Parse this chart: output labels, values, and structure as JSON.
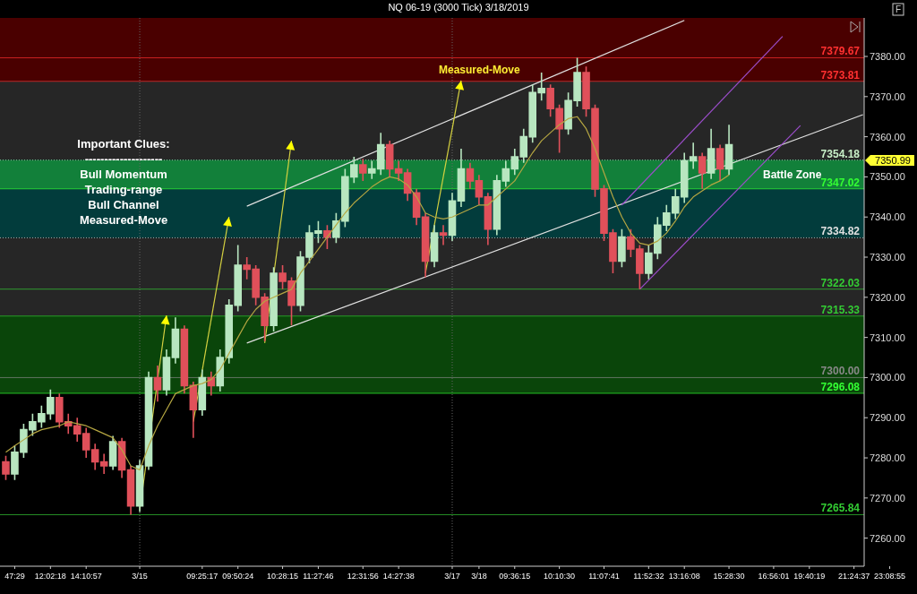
{
  "chart_data": {
    "type": "candlestick",
    "title": "NQ 06-19 (3000 Tick)  3/18/2019",
    "categories": [
      null,
      "47:29",
      null,
      null,
      null,
      "12:02:18",
      null,
      null,
      null,
      "14:10:57",
      null,
      null,
      null,
      null,
      null,
      "3/15",
      null,
      null,
      null,
      null,
      null,
      null,
      "09:25:17",
      null,
      null,
      null,
      "09:50:24",
      null,
      null,
      null,
      null,
      "10:28:15",
      null,
      null,
      null,
      "11:27:46",
      null,
      null,
      null,
      null,
      "12:31:56",
      null,
      null,
      null,
      "14:27:38",
      null,
      null,
      null,
      null,
      null,
      "3/17",
      null,
      null,
      "3/18",
      null,
      null,
      null,
      "09:36:15",
      null,
      null,
      null,
      null,
      "10:10:30",
      null,
      null,
      null,
      null,
      "11:07:41",
      null,
      null,
      null,
      null,
      "11:52:32",
      null,
      null,
      null,
      "13:16:08",
      null,
      null,
      null,
      null,
      "15:28:30",
      null,
      null,
      null,
      null,
      "16:56:01",
      null,
      null,
      null,
      "19:40:19",
      null,
      null,
      null,
      null,
      "21:24:37",
      null,
      null,
      null,
      "23:08:55"
    ],
    "ohlc": [
      [
        7279,
        7280.5,
        7274.5,
        7276
      ],
      [
        7276,
        7283,
        7274.5,
        7281.4
      ],
      [
        7281.4,
        7288.5,
        7280,
        7287
      ],
      [
        7287,
        7291,
        7285.5,
        7289
      ],
      [
        7289,
        7293,
        7287.5,
        7291
      ],
      [
        7291,
        7297,
        7289.5,
        7295
      ],
      [
        7295,
        7296,
        7287.5,
        7289
      ],
      [
        7289,
        7291,
        7286,
        7288
      ],
      [
        7288,
        7290,
        7284,
        7286
      ],
      [
        7286,
        7287.5,
        7280,
        7282
      ],
      [
        7282,
        7283.5,
        7277,
        7279
      ],
      [
        7279,
        7281,
        7276,
        7278
      ],
      [
        7278,
        7285.5,
        7277,
        7284
      ],
      [
        7284,
        7285,
        7275,
        7277
      ],
      [
        7277,
        7278,
        7265.84,
        7268
      ],
      [
        7268,
        7279.5,
        7266.5,
        7278
      ],
      [
        7278,
        7301.5,
        7277,
        7300
      ],
      [
        7300,
        7303,
        7294,
        7297
      ],
      [
        7297,
        7307,
        7295.5,
        7305
      ],
      [
        7305,
        7315,
        7303.5,
        7312
      ],
      [
        7312,
        7313,
        7296,
        7298
      ],
      [
        7298,
        7299,
        7285,
        7292
      ],
      [
        7292,
        7302,
        7290.5,
        7300
      ],
      [
        7300,
        7301.5,
        7295.5,
        7298
      ],
      [
        7298,
        7307,
        7296.5,
        7305
      ],
      [
        7305,
        7319.5,
        7303.5,
        7318
      ],
      [
        7318,
        7333,
        7316.5,
        7328
      ],
      [
        7328,
        7330,
        7324.5,
        7327
      ],
      [
        7327,
        7328,
        7318,
        7320
      ],
      [
        7320,
        7321,
        7309,
        7313
      ],
      [
        7313,
        7327.5,
        7311.5,
        7326
      ],
      [
        7326,
        7328,
        7322,
        7324
      ],
      [
        7324,
        7325,
        7313,
        7318
      ],
      [
        7318,
        7331.5,
        7316.5,
        7330
      ],
      [
        7330,
        7338,
        7328.5,
        7336
      ],
      [
        7336,
        7339,
        7333.5,
        7336.5
      ],
      [
        7336.5,
        7338,
        7332,
        7335
      ],
      [
        7335,
        7341,
        7333.5,
        7339
      ],
      [
        7339,
        7352,
        7337.5,
        7350
      ],
      [
        7350,
        7355,
        7348.5,
        7353
      ],
      [
        7353,
        7354.5,
        7349,
        7351
      ],
      [
        7351,
        7354,
        7349.5,
        7352
      ],
      [
        7352,
        7361,
        7350.5,
        7358
      ],
      [
        7358,
        7359,
        7350,
        7352
      ],
      [
        7352,
        7354,
        7349,
        7351
      ],
      [
        7351,
        7352,
        7344,
        7346
      ],
      [
        7346,
        7347,
        7338,
        7340
      ],
      [
        7340,
        7341,
        7325,
        7329
      ],
      [
        7329,
        7338,
        7327.5,
        7336
      ],
      [
        7336,
        7338,
        7333,
        7335.5
      ],
      [
        7335.5,
        7346,
        7334,
        7344
      ],
      [
        7344,
        7357,
        7342.5,
        7352
      ],
      [
        7352,
        7353.5,
        7347,
        7349
      ],
      [
        7349,
        7350.5,
        7343,
        7345
      ],
      [
        7345,
        7346,
        7333,
        7337
      ],
      [
        7337,
        7350.5,
        7335.5,
        7349
      ],
      [
        7349,
        7354,
        7347.5,
        7352
      ],
      [
        7352,
        7357,
        7350.5,
        7355
      ],
      [
        7355,
        7362,
        7353.5,
        7360
      ],
      [
        7360,
        7373,
        7358.5,
        7371
      ],
      [
        7371,
        7376,
        7369,
        7372
      ],
      [
        7372,
        7373,
        7365,
        7367
      ],
      [
        7367,
        7368,
        7356,
        7362
      ],
      [
        7362,
        7371,
        7360.5,
        7369
      ],
      [
        7369,
        7379.67,
        7367.5,
        7376
      ],
      [
        7376,
        7377.5,
        7365,
        7367
      ],
      [
        7367,
        7368,
        7345,
        7347
      ],
      [
        7347,
        7348,
        7334,
        7336
      ],
      [
        7336,
        7337,
        7326,
        7329
      ],
      [
        7329,
        7337,
        7327.5,
        7335
      ],
      [
        7335,
        7337,
        7330,
        7332
      ],
      [
        7332,
        7333,
        7322.03,
        7326
      ],
      [
        7326,
        7333,
        7324.5,
        7331
      ],
      [
        7331,
        7340,
        7329.5,
        7338
      ],
      [
        7338,
        7343,
        7336.5,
        7341
      ],
      [
        7341,
        7347,
        7339.5,
        7345
      ],
      [
        7345,
        7356,
        7343.5,
        7354
      ],
      [
        7354,
        7358.5,
        7352,
        7355
      ],
      [
        7355,
        7356,
        7347,
        7351
      ],
      [
        7351,
        7362,
        7349.5,
        7357
      ],
      [
        7357,
        7358,
        7349,
        7352
      ],
      [
        7352,
        7363,
        7350.5,
        7358
      ],
      null,
      null,
      null,
      null,
      null,
      null,
      null,
      null,
      null,
      null,
      null,
      null,
      null,
      null,
      null,
      null,
      null,
      null
    ],
    "series": [
      {
        "type": "line",
        "color": "#b5a642",
        "values": [
          7281.4,
          7283,
          7284.5,
          7286,
          7287,
          7287.5,
          7288,
          7289,
          7288.5,
          7288,
          7287,
          7286,
          7285,
          7282,
          7278,
          7277,
          7283,
          7288,
          7292,
          7296,
          7297,
          7298,
          7298.5,
          7299.5,
          7302,
          7306,
          7310,
          7314,
          7317,
          7319,
          7320,
          7321,
          7322,
          7326,
          7329,
          7332,
          7335,
          7338,
          7341,
          7343.5,
          7345.5,
          7347.5,
          7349,
          7350,
          7349.5,
          7348,
          7345,
          7341,
          7340,
          7339.5,
          7340,
          7341,
          7342,
          7343,
          7343,
          7345,
          7347,
          7349,
          7352.5,
          7356,
          7359,
          7361,
          7363,
          7364.5,
          7365,
          7362,
          7357,
          7351,
          7345,
          7340,
          7336,
          7333.5,
          7333,
          7334,
          7336,
          7339,
          7342.5,
          7345,
          7346.5,
          7348,
          7349,
          7350.5,
          null,
          null,
          null,
          null,
          null,
          null,
          null,
          null,
          null,
          null,
          null,
          null,
          null,
          null,
          null,
          null,
          null,
          null
        ]
      },
      {
        "type": "line",
        "color": "#e0e0e0",
        "values": [
          null,
          null,
          null,
          null,
          null,
          null,
          null,
          null,
          null,
          null,
          null,
          null,
          null,
          null,
          null,
          null,
          null,
          null,
          null,
          null,
          null,
          null,
          null,
          null,
          null,
          null,
          null,
          7308.6,
          null,
          null,
          null,
          null,
          null,
          null,
          null,
          null,
          null,
          null,
          null,
          null,
          null,
          null,
          null,
          null,
          null,
          null,
          null,
          null,
          null,
          null,
          null,
          null,
          null,
          null,
          null,
          null,
          null,
          null,
          null,
          null,
          null,
          null,
          null,
          null,
          null,
          null,
          null,
          null,
          null,
          null,
          null,
          null,
          null,
          null,
          null,
          null,
          null,
          null,
          null,
          null,
          null,
          null,
          null,
          null,
          null,
          null,
          null,
          null,
          null,
          null,
          null,
          null,
          null,
          null,
          null,
          null,
          7365.5,
          null,
          null,
          null
        ]
      },
      {
        "type": "line",
        "color": "#e0e0e0",
        "values": [
          null,
          null,
          null,
          null,
          null,
          null,
          null,
          null,
          null,
          null,
          null,
          null,
          null,
          null,
          null,
          null,
          null,
          null,
          null,
          null,
          null,
          null,
          null,
          null,
          null,
          null,
          null,
          7342.7,
          null,
          null,
          null,
          null,
          null,
          null,
          null,
          null,
          null,
          null,
          null,
          null,
          null,
          null,
          null,
          null,
          null,
          null,
          null,
          null,
          null,
          null,
          null,
          null,
          null,
          null,
          null,
          null,
          null,
          null,
          null,
          null,
          null,
          null,
          null,
          null,
          null,
          null,
          null,
          null,
          null,
          null,
          null,
          null,
          null,
          null,
          null,
          null,
          7389,
          null,
          null,
          null,
          null,
          null,
          null,
          null,
          null,
          null,
          null,
          null,
          null,
          null,
          null,
          null,
          null,
          null,
          null,
          null,
          null,
          null,
          null,
          null
        ]
      },
      {
        "type": "line",
        "color": "#9b4dca",
        "values": [
          null,
          null,
          null,
          null,
          null,
          null,
          null,
          null,
          null,
          null,
          null,
          null,
          null,
          null,
          null,
          null,
          null,
          null,
          null,
          null,
          null,
          null,
          null,
          null,
          null,
          null,
          null,
          null,
          null,
          null,
          null,
          null,
          null,
          null,
          null,
          null,
          null,
          null,
          null,
          null,
          null,
          null,
          null,
          null,
          null,
          null,
          null,
          null,
          null,
          null,
          null,
          null,
          null,
          null,
          null,
          null,
          null,
          null,
          null,
          null,
          null,
          null,
          null,
          null,
          null,
          null,
          null,
          null,
          null,
          7343,
          null,
          null,
          null,
          null,
          null,
          null,
          null,
          null,
          null,
          null,
          null,
          null,
          null,
          null,
          null,
          null,
          null,
          7385,
          null,
          null,
          null,
          null,
          null,
          null,
          null,
          null,
          null,
          null,
          null,
          null
        ]
      },
      {
        "type": "line",
        "color": "#9b4dca",
        "values": [
          null,
          null,
          null,
          null,
          null,
          null,
          null,
          null,
          null,
          null,
          null,
          null,
          null,
          null,
          null,
          null,
          null,
          null,
          null,
          null,
          null,
          null,
          null,
          null,
          null,
          null,
          null,
          null,
          null,
          null,
          null,
          null,
          null,
          null,
          null,
          null,
          null,
          null,
          null,
          null,
          null,
          null,
          null,
          null,
          null,
          null,
          null,
          null,
          null,
          null,
          null,
          null,
          null,
          null,
          null,
          null,
          null,
          null,
          null,
          null,
          null,
          null,
          null,
          null,
          null,
          null,
          null,
          null,
          null,
          null,
          null,
          7322,
          null,
          null,
          null,
          null,
          null,
          null,
          null,
          null,
          null,
          null,
          null,
          null,
          null,
          null,
          null,
          null,
          null,
          7362.8,
          null,
          null,
          null,
          null,
          null,
          null,
          null,
          null,
          null,
          null
        ]
      },
      {
        "type": "line",
        "color": "#d4d040",
        "values": [
          null,
          null,
          null,
          null,
          null,
          null,
          null,
          null,
          null,
          null,
          null,
          null,
          null,
          null,
          null,
          7267,
          null,
          null,
          7315.5,
          null,
          null,
          null,
          null,
          null,
          null,
          null,
          null,
          null,
          null,
          null,
          null,
          null,
          null,
          null,
          null,
          null,
          null,
          null,
          null,
          null,
          null,
          null,
          null,
          null,
          null,
          null,
          null,
          null,
          null,
          null,
          null,
          null,
          null,
          null,
          null,
          null,
          null,
          null,
          null,
          null,
          null,
          null,
          null,
          null,
          null,
          null,
          null,
          null,
          null,
          null,
          null,
          null,
          null,
          null,
          null,
          null,
          null,
          null,
          null,
          null,
          null,
          null,
          null,
          null,
          null,
          null,
          null,
          null,
          null,
          null,
          null,
          null,
          null,
          null,
          null,
          null,
          null,
          null,
          null,
          null
        ]
      },
      {
        "type": "line",
        "color": "#d4d040",
        "values": [
          null,
          null,
          null,
          null,
          null,
          null,
          null,
          null,
          null,
          null,
          null,
          null,
          null,
          null,
          null,
          null,
          null,
          null,
          null,
          null,
          null,
          7289,
          null,
          null,
          null,
          7340,
          null,
          null,
          null,
          null,
          null,
          null,
          null,
          null,
          null,
          null,
          null,
          null,
          null,
          null,
          null,
          null,
          null,
          null,
          null,
          null,
          null,
          null,
          null,
          null,
          null,
          null,
          null,
          null,
          null,
          null,
          null,
          null,
          null,
          null,
          null,
          null,
          null,
          null,
          null,
          null,
          null,
          null,
          null,
          null,
          null,
          null,
          null,
          null,
          null,
          null,
          null,
          null,
          null,
          null,
          null,
          null,
          null,
          null,
          null,
          null,
          null,
          null,
          null,
          null,
          null,
          null,
          null,
          null,
          null,
          null,
          null,
          null,
          null,
          null
        ]
      },
      {
        "type": "line",
        "color": "#d4d040",
        "values": [
          null,
          null,
          null,
          null,
          null,
          null,
          null,
          null,
          null,
          null,
          null,
          null,
          null,
          null,
          null,
          null,
          null,
          null,
          null,
          null,
          null,
          null,
          null,
          null,
          null,
          null,
          null,
          null,
          null,
          7308.6,
          null,
          null,
          7359,
          null,
          null,
          null,
          null,
          null,
          null,
          null,
          null,
          null,
          null,
          null,
          null,
          null,
          null,
          null,
          null,
          null,
          null,
          null,
          null,
          null,
          null,
          null,
          null,
          null,
          null,
          null,
          null,
          null,
          null,
          null,
          null,
          null,
          null,
          null,
          null,
          null,
          null,
          null,
          null,
          null,
          null,
          null,
          null,
          null,
          null,
          null,
          null,
          null,
          null,
          null,
          null,
          null,
          null,
          null,
          null,
          null,
          null,
          null,
          null,
          null,
          null,
          null,
          null,
          null,
          null,
          null
        ]
      },
      {
        "type": "line",
        "color": "#d4d040",
        "values": [
          null,
          null,
          null,
          null,
          null,
          null,
          null,
          null,
          null,
          null,
          null,
          null,
          null,
          null,
          null,
          null,
          null,
          null,
          null,
          null,
          null,
          null,
          null,
          null,
          null,
          null,
          null,
          null,
          null,
          null,
          null,
          null,
          null,
          null,
          null,
          null,
          null,
          null,
          null,
          null,
          null,
          null,
          null,
          null,
          null,
          null,
          null,
          7326,
          null,
          null,
          null,
          7374,
          null,
          null,
          null,
          null,
          null,
          null,
          null,
          null,
          null,
          null,
          null,
          null,
          null,
          null,
          null,
          null,
          null,
          null,
          null,
          null,
          null,
          null,
          null,
          null,
          null,
          null,
          null,
          null,
          null,
          null,
          null,
          null,
          null,
          null,
          null,
          null,
          null,
          null,
          null,
          null,
          null,
          null,
          null,
          null,
          null,
          null,
          null,
          null
        ]
      }
    ],
    "ylim": [
      7253,
      7389.6
    ],
    "yticks": [
      {
        "value": 7260,
        "label": "7260.00"
      },
      {
        "value": 7270,
        "label": "7270.00"
      },
      {
        "value": 7280,
        "label": "7280.00"
      },
      {
        "value": 7290,
        "label": "7290.00"
      },
      {
        "value": 7300,
        "label": "7300.00"
      },
      {
        "value": 7310,
        "label": "7310.00"
      },
      {
        "value": 7320,
        "label": "7320.00"
      },
      {
        "value": 7330,
        "label": "7330.00"
      },
      {
        "value": 7340,
        "label": "7340.00"
      },
      {
        "value": 7350,
        "label": "7350.00"
      },
      {
        "value": 7360,
        "label": "7360.00"
      },
      {
        "value": 7370,
        "label": "7370.00"
      },
      {
        "value": 7380,
        "label": "7380.00"
      }
    ],
    "bands": [
      {
        "axis": "y",
        "from": 7373.81,
        "to": 7389.6,
        "color": "#4a0000"
      },
      {
        "axis": "y",
        "from": 7315.33,
        "to": 7373.81,
        "color": "#262626"
      },
      {
        "axis": "y",
        "from": 7334.82,
        "to": 7354.18,
        "color": "#023c3c"
      },
      {
        "axis": "y",
        "from": 7296.08,
        "to": 7315.33,
        "color": "#0a450a"
      },
      {
        "axis": "y",
        "from": 7347.02,
        "to": 7354.18,
        "color": "#12803a",
        "label": "Battle Zone"
      }
    ],
    "ref_lines": [
      {
        "axis": "y",
        "value": 7379.67,
        "label": "7379.67",
        "color": "#ff3030"
      },
      {
        "axis": "y",
        "value": 7373.81,
        "label": "7373.81",
        "color": "#ff3030"
      },
      {
        "axis": "y",
        "value": 7354.18,
        "label": "7354.18",
        "color": "#c8f0c8",
        "line_style": "dotted"
      },
      {
        "axis": "y",
        "value": 7347.02,
        "label": "7347.02",
        "color": "#33ff33"
      },
      {
        "axis": "y",
        "value": 7334.82,
        "label": "7334.82",
        "color": "#e0e0e0",
        "line_style": "dotted"
      },
      {
        "axis": "y",
        "value": 7322.03,
        "label": "7322.03",
        "color": "#33cc33"
      },
      {
        "axis": "y",
        "value": 7315.33,
        "label": "7315.33",
        "color": "#33cc33"
      },
      {
        "axis": "y",
        "value": 7300,
        "label": "7300.00",
        "color": "#888888"
      },
      {
        "axis": "y",
        "value": 7296.08,
        "label": "7296.08",
        "color": "#33ff33"
      },
      {
        "axis": "y",
        "value": 7265.84,
        "label": "7265.84",
        "color": "#33cc33"
      },
      {
        "axis": "x",
        "value": "3/15",
        "color": "#666666",
        "line_style": "dotted"
      },
      {
        "axis": "x",
        "value": "3/17",
        "color": "#666666",
        "line_style": "dotted"
      }
    ],
    "annotations": [
      "Measured-Move",
      "Important Clues:",
      "--------------------",
      "Bull Momentum",
      "Trading-range",
      "Bull Channel",
      "Measured-Move",
      "F",
      "7350.99"
    ]
  }
}
